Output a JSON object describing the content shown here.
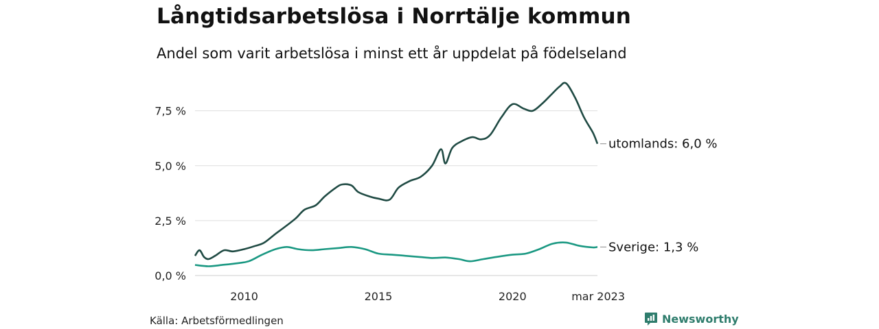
{
  "header": {
    "title": "Långtidsarbetslösa i Norrtälje kommun",
    "subtitle": "Andel som varit arbetslösa i minst ett år uppdelat på födelseland"
  },
  "footer": {
    "source": "Källa: Arbetsförmedlingen",
    "brand": "Newsworthy"
  },
  "colors": {
    "utomlands": "#1f4a43",
    "sverige": "#1a9882",
    "grid": "#dddddd",
    "brand": "#2f7d6d"
  },
  "icons": {
    "brand_logo": "bar-chart-badge-icon"
  },
  "chart_data": {
    "type": "line",
    "x_start": "2008-03",
    "x_end": "2023-03",
    "ylim": [
      0,
      8.8
    ],
    "grid": true,
    "y_ticks": [
      {
        "value": 0,
        "label": "0,0 %"
      },
      {
        "value": 2.5,
        "label": "2,5 %"
      },
      {
        "value": 5,
        "label": "5,0 %"
      },
      {
        "value": 7.5,
        "label": "7,5 %"
      }
    ],
    "x_ticks": [
      {
        "date": "2010-01",
        "label": "2010"
      },
      {
        "date": "2015-01",
        "label": "2015"
      },
      {
        "date": "2020-01",
        "label": "2020"
      },
      {
        "date": "2023-03",
        "label": "mar 2023"
      }
    ],
    "series": [
      {
        "key": "utomlands",
        "end_label": "utomlands: 6,0 %",
        "points": [
          [
            "2008-03",
            0.9
          ],
          [
            "2008-05",
            1.15
          ],
          [
            "2008-07",
            0.85
          ],
          [
            "2008-09",
            0.75
          ],
          [
            "2008-12",
            0.9
          ],
          [
            "2009-04",
            1.15
          ],
          [
            "2009-08",
            1.1
          ],
          [
            "2010-01",
            1.2
          ],
          [
            "2010-06",
            1.35
          ],
          [
            "2010-10",
            1.5
          ],
          [
            "2011-03",
            1.9
          ],
          [
            "2011-07",
            2.2
          ],
          [
            "2011-12",
            2.6
          ],
          [
            "2012-04",
            3.0
          ],
          [
            "2012-09",
            3.2
          ],
          [
            "2013-01",
            3.6
          ],
          [
            "2013-06",
            4.0
          ],
          [
            "2013-09",
            4.15
          ],
          [
            "2014-01",
            4.1
          ],
          [
            "2014-04",
            3.8
          ],
          [
            "2014-09",
            3.6
          ],
          [
            "2015-01",
            3.5
          ],
          [
            "2015-06",
            3.45
          ],
          [
            "2015-10",
            4.0
          ],
          [
            "2016-03",
            4.3
          ],
          [
            "2016-08",
            4.5
          ],
          [
            "2017-01",
            5.0
          ],
          [
            "2017-05",
            5.75
          ],
          [
            "2017-07",
            5.1
          ],
          [
            "2017-10",
            5.8
          ],
          [
            "2018-02",
            6.1
          ],
          [
            "2018-07",
            6.3
          ],
          [
            "2018-11",
            6.2
          ],
          [
            "2019-03",
            6.4
          ],
          [
            "2019-08",
            7.2
          ],
          [
            "2020-01",
            7.8
          ],
          [
            "2020-06",
            7.6
          ],
          [
            "2020-10",
            7.5
          ],
          [
            "2021-02",
            7.8
          ],
          [
            "2021-06",
            8.2
          ],
          [
            "2021-10",
            8.6
          ],
          [
            "2022-01",
            8.75
          ],
          [
            "2022-05",
            8.1
          ],
          [
            "2022-09",
            7.2
          ],
          [
            "2023-01",
            6.5
          ],
          [
            "2023-03",
            6.0
          ]
        ]
      },
      {
        "key": "sverige",
        "end_label": "Sverige: 1,3 %",
        "points": [
          [
            "2008-03",
            0.48
          ],
          [
            "2008-09",
            0.42
          ],
          [
            "2009-03",
            0.48
          ],
          [
            "2009-09",
            0.55
          ],
          [
            "2010-03",
            0.65
          ],
          [
            "2010-09",
            0.95
          ],
          [
            "2011-03",
            1.2
          ],
          [
            "2011-08",
            1.3
          ],
          [
            "2012-01",
            1.2
          ],
          [
            "2012-07",
            1.15
          ],
          [
            "2013-01",
            1.2
          ],
          [
            "2013-07",
            1.25
          ],
          [
            "2014-01",
            1.3
          ],
          [
            "2014-07",
            1.2
          ],
          [
            "2015-01",
            1.0
          ],
          [
            "2015-07",
            0.95
          ],
          [
            "2016-01",
            0.9
          ],
          [
            "2016-07",
            0.85
          ],
          [
            "2017-01",
            0.8
          ],
          [
            "2017-07",
            0.82
          ],
          [
            "2018-01",
            0.75
          ],
          [
            "2018-06",
            0.65
          ],
          [
            "2018-12",
            0.75
          ],
          [
            "2019-06",
            0.85
          ],
          [
            "2020-01",
            0.95
          ],
          [
            "2020-07",
            1.0
          ],
          [
            "2021-01",
            1.2
          ],
          [
            "2021-07",
            1.45
          ],
          [
            "2022-01",
            1.5
          ],
          [
            "2022-07",
            1.35
          ],
          [
            "2023-01",
            1.28
          ],
          [
            "2023-03",
            1.3
          ]
        ]
      }
    ]
  }
}
